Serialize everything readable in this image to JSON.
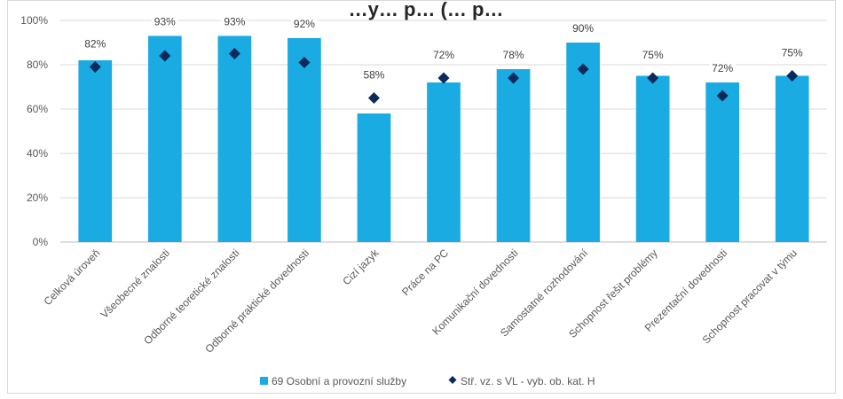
{
  "chart_data": {
    "type": "bar",
    "title": "…y… p… (… p…",
    "categories": [
      "Celková úroveň",
      "Všeobecné znalosti",
      "Odborné teoretické znalosti",
      "Odborné praktické dovednosti",
      "Cizí jazyk",
      "Práce na PC",
      "Komunikační dovednosti",
      "Samostatné rozhodování",
      "Schopnost řešit problémy",
      "Prezentační dovednosti",
      "Schopnost pracovat v týmu"
    ],
    "series": [
      {
        "name": "69 Osobní a provozní služby",
        "type": "bar",
        "color": "#1AABE3",
        "values": [
          82,
          93,
          93,
          92,
          58,
          72,
          78,
          90,
          75,
          72,
          75
        ],
        "data_labels": [
          "82%",
          "93%",
          "93%",
          "92%",
          "58%",
          "72%",
          "78%",
          "90%",
          "75%",
          "72%",
          "75%"
        ]
      },
      {
        "name": "Stř. vz. s VL - vyb. ob. kat. H",
        "type": "marker",
        "marker": "diamond",
        "color": "#0D2A5C",
        "values": [
          79,
          84,
          85,
          81,
          65,
          74,
          74,
          78,
          74,
          66,
          75
        ]
      }
    ],
    "ylim": [
      0,
      100
    ],
    "yticks": [
      0,
      20,
      40,
      60,
      80,
      100
    ],
    "ytick_labels": [
      "0%",
      "20%",
      "40%",
      "60%",
      "80%",
      "100%"
    ],
    "grid": true,
    "legend_position": "bottom"
  }
}
